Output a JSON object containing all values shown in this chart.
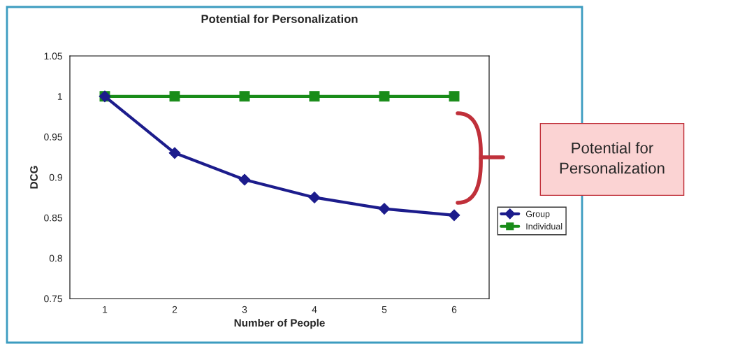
{
  "chart_data": {
    "type": "line",
    "title": "Potential for Personalization",
    "xlabel": "Number of People",
    "ylabel": "DCG",
    "categories": [
      "1",
      "2",
      "3",
      "4",
      "5",
      "6"
    ],
    "series": [
      {
        "name": "Group",
        "color": "#1c1c8c",
        "marker": "diamond",
        "values": [
          1.0,
          0.93,
          0.897,
          0.875,
          0.861,
          0.853
        ]
      },
      {
        "name": "Individual",
        "color": "#198c19",
        "marker": "square",
        "values": [
          1.0,
          1.0,
          1.0,
          1.0,
          1.0,
          1.0
        ]
      }
    ],
    "ylim": [
      0.75,
      1.05
    ],
    "yticks": [
      0.75,
      0.8,
      0.85,
      0.9,
      0.95,
      1,
      1.05
    ],
    "grid": false,
    "legend": "right",
    "annotations": [
      "Potential for Personalization"
    ]
  }
}
